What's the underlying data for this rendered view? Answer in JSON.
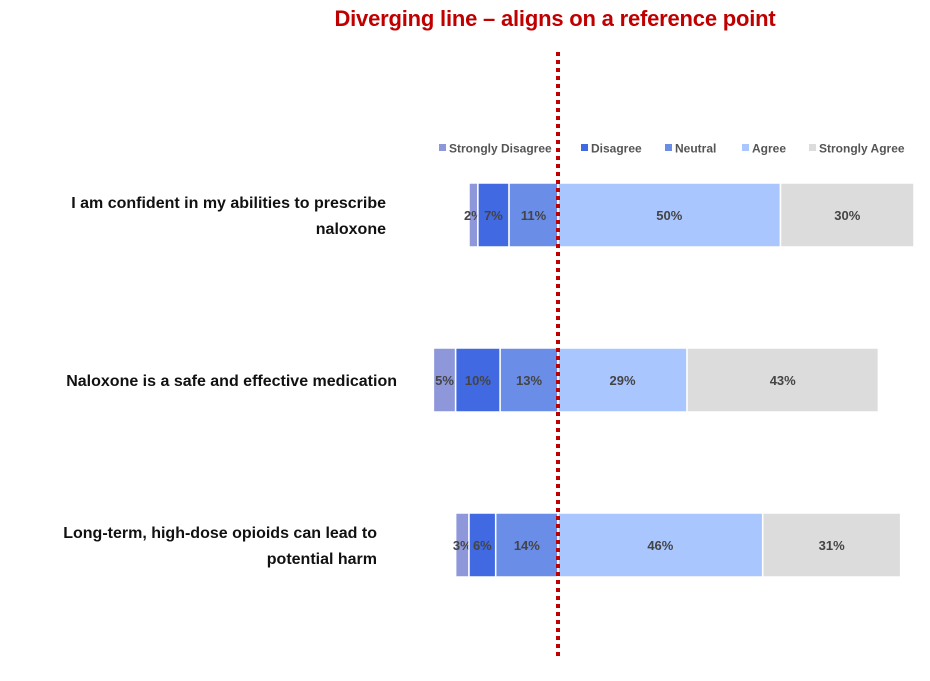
{
  "title": "Diverging line – aligns on a reference point",
  "chart_data": {
    "type": "bar",
    "orientation": "horizontal",
    "stacked": true,
    "diverging_reference": "between Neutral and Agree",
    "categories": [
      "I am confident in my abilities to prescribe naloxone",
      "Naloxone is a safe and effective medication",
      "Long-term, high-dose opioids can lead to potential harm"
    ],
    "category_lines": [
      [
        "I am confident in my abilities to prescribe",
        "naloxone"
      ],
      [
        "Naloxone is a safe and effective medication"
      ],
      [
        "Long-term, high-dose opioids can lead to",
        "potential harm"
      ]
    ],
    "series": [
      {
        "name": "Strongly Disagree",
        "color": "#8d97da",
        "values": [
          2,
          5,
          3
        ],
        "labels": [
          "2%",
          "5%",
          "3%"
        ]
      },
      {
        "name": "Disagree",
        "color": "#4169e1",
        "values": [
          7,
          10,
          6
        ],
        "labels": [
          "7%",
          "10%",
          "6%"
        ]
      },
      {
        "name": "Neutral",
        "color": "#6a8de8",
        "values": [
          11,
          13,
          14
        ],
        "labels": [
          "11%",
          "13%",
          "14%"
        ]
      },
      {
        "name": "Agree",
        "color": "#a9c6ff",
        "values": [
          50,
          29,
          46
        ],
        "labels": [
          "50%",
          "29%",
          "46%"
        ]
      },
      {
        "name": "Strongly Agree",
        "color": "#dcdcdc",
        "values": [
          30,
          43,
          31
        ],
        "labels": [
          "30%",
          "43%",
          "31%"
        ]
      }
    ],
    "legend": {
      "position": "top",
      "labels": [
        "Strongly Disagree",
        "Disagree",
        "Neutral",
        "Agree",
        "Strongly Agree"
      ]
    },
    "reference_line_color": "#c00000",
    "grid": false
  }
}
